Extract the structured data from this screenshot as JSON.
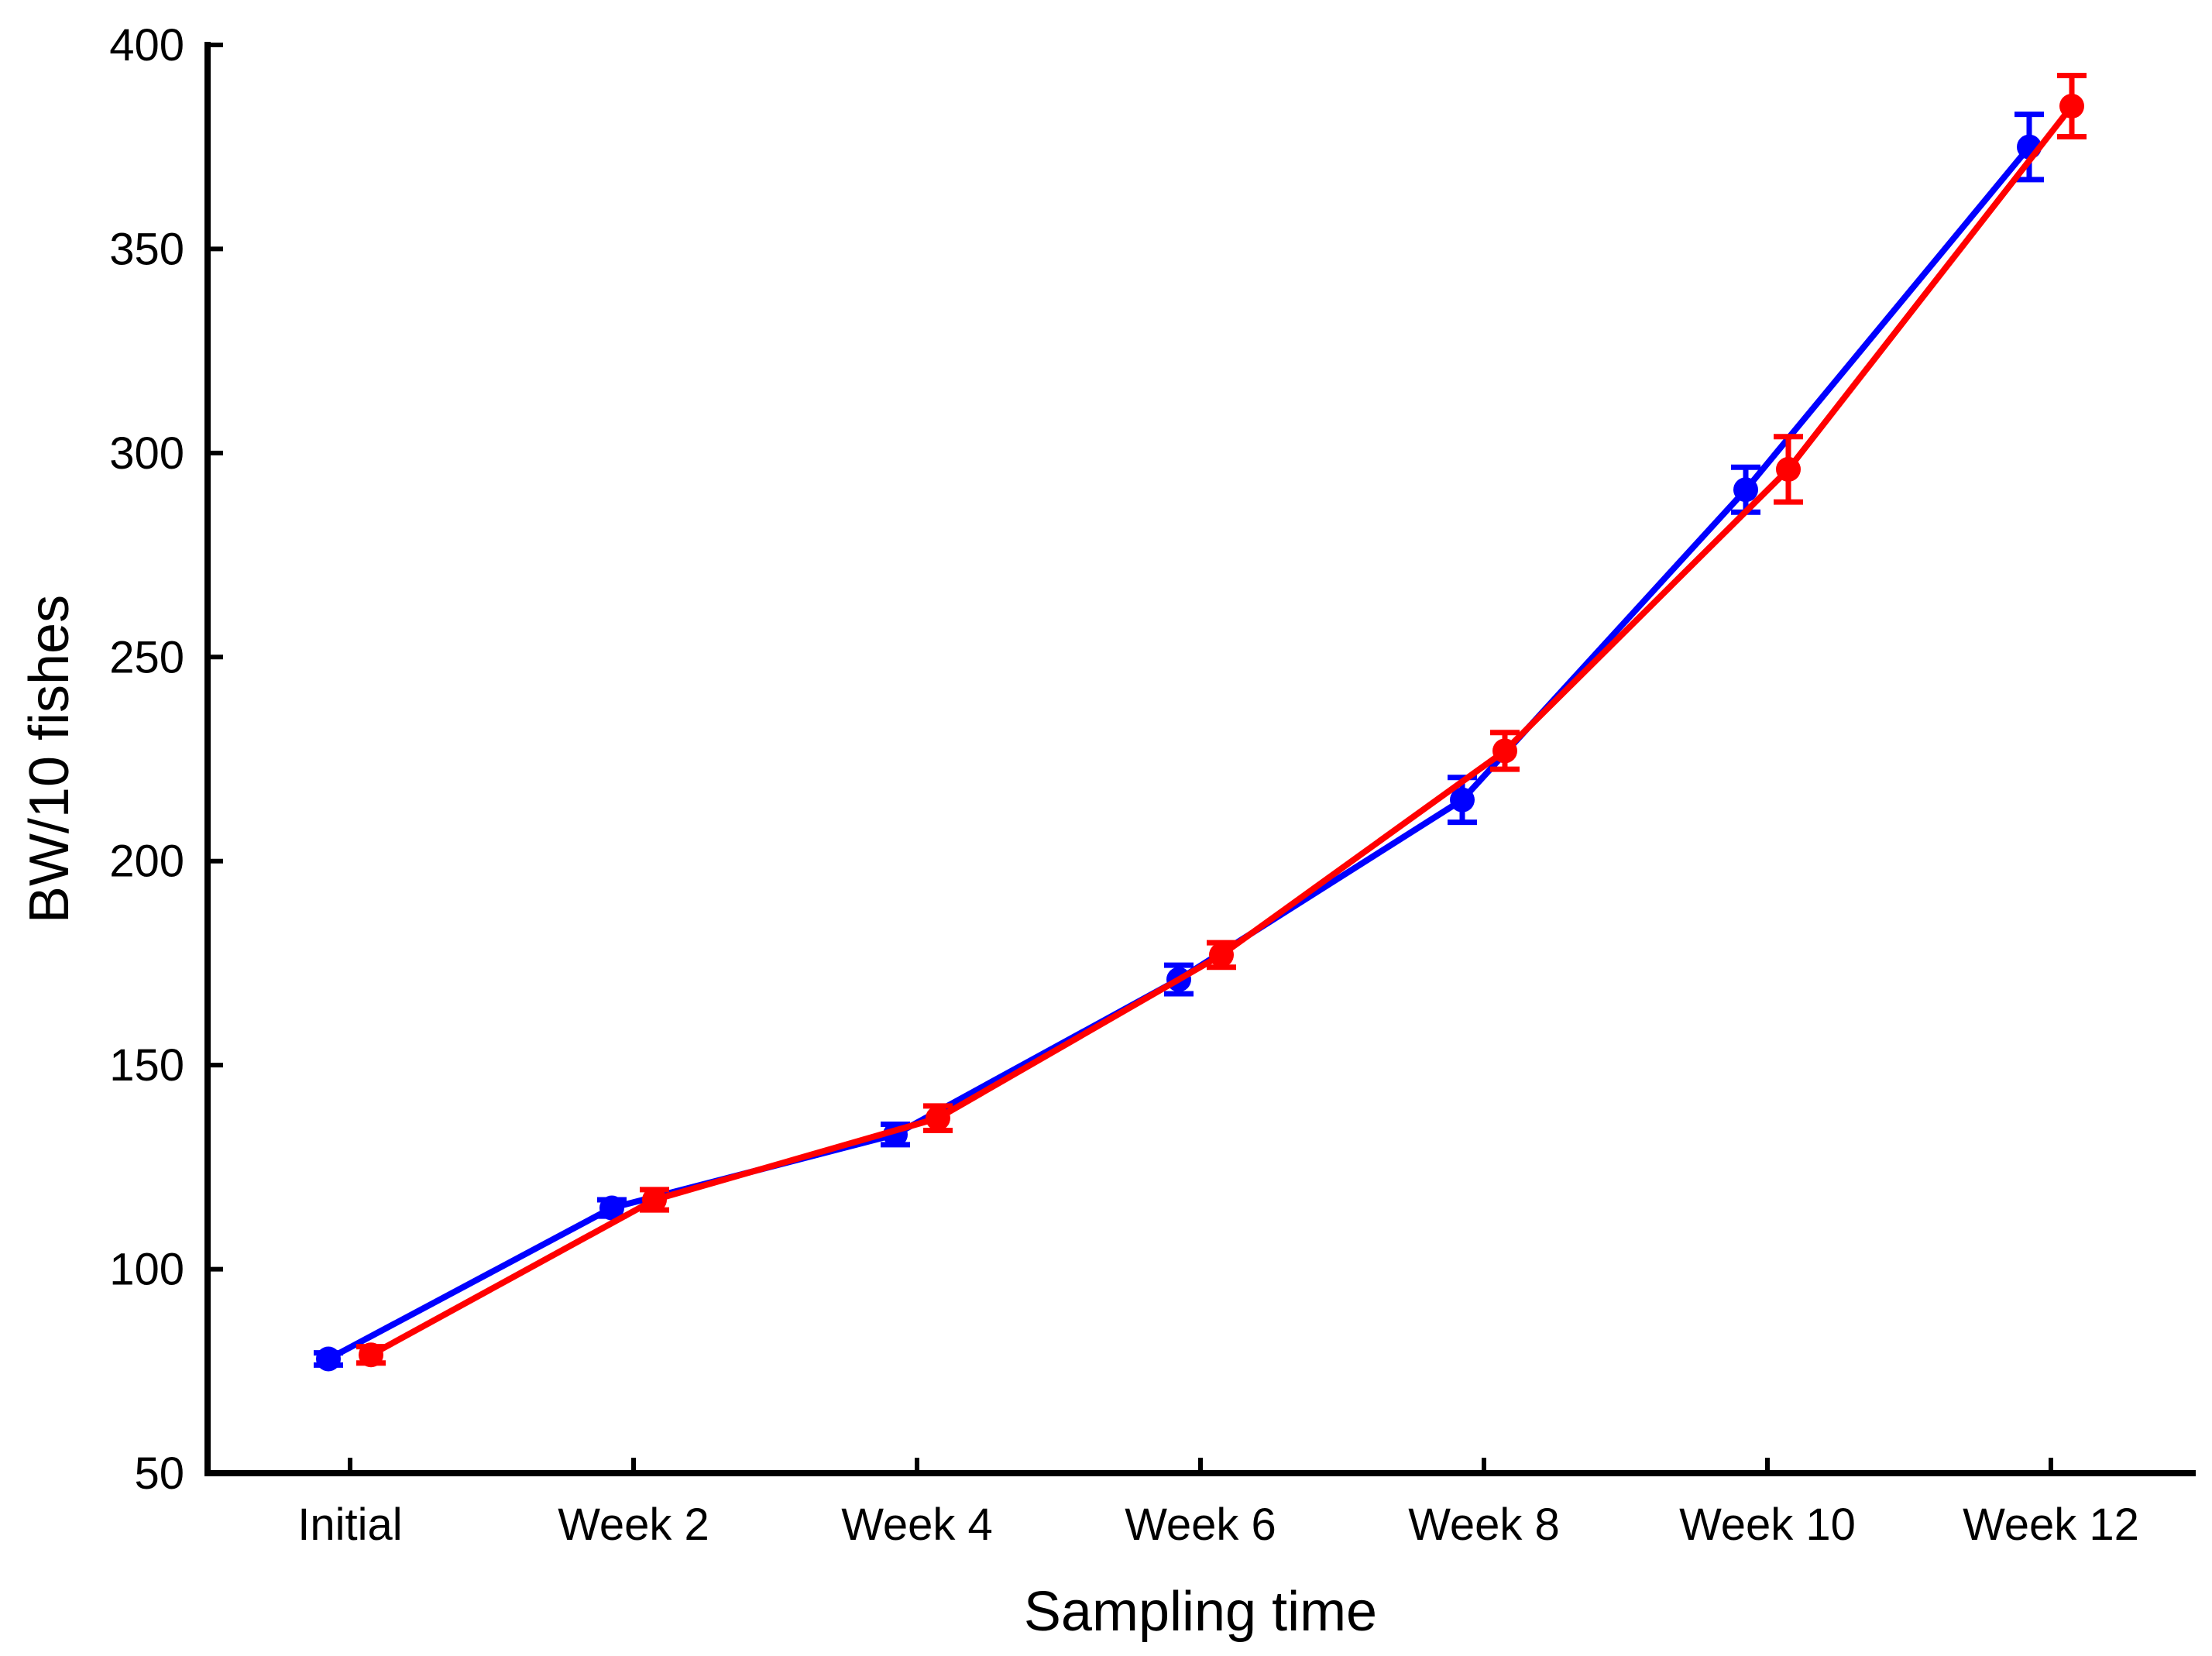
{
  "figure": {
    "background": "#ffffff",
    "axis_color": "#000000"
  },
  "chart_data": {
    "type": "line",
    "title": "",
    "xlabel": "Sampling time",
    "ylabel": "BW/10 fishes",
    "categories": [
      "Initial",
      "Week 2",
      "Week 4",
      "Week 6",
      "Week 8",
      "Week 10",
      "Week 12"
    ],
    "y_axis": {
      "min": 50,
      "max": 400,
      "step": 50,
      "ticks": [
        400,
        350,
        300,
        250,
        200,
        150,
        100,
        50
      ],
      "tick_labels": [
        "400",
        "350",
        "300",
        "250",
        "200",
        "150",
        "100",
        "50"
      ]
    },
    "grid": false,
    "legend": "none",
    "error_bars": true,
    "series": [
      {
        "name": "blue-series",
        "color": "#0000ff",
        "marker": "circle",
        "values": [
          78,
          115,
          133,
          171,
          215,
          291,
          375
        ],
        "errors": [
          1.5,
          2,
          2.5,
          3.5,
          5.5,
          5.5,
          8
        ]
      },
      {
        "name": "red-series",
        "color": "#ff0000",
        "marker": "circle",
        "values": [
          79,
          117,
          137,
          177,
          227,
          296,
          385
        ],
        "errors": [
          2,
          2.5,
          3,
          3,
          4.5,
          8,
          7.5
        ]
      }
    ]
  }
}
